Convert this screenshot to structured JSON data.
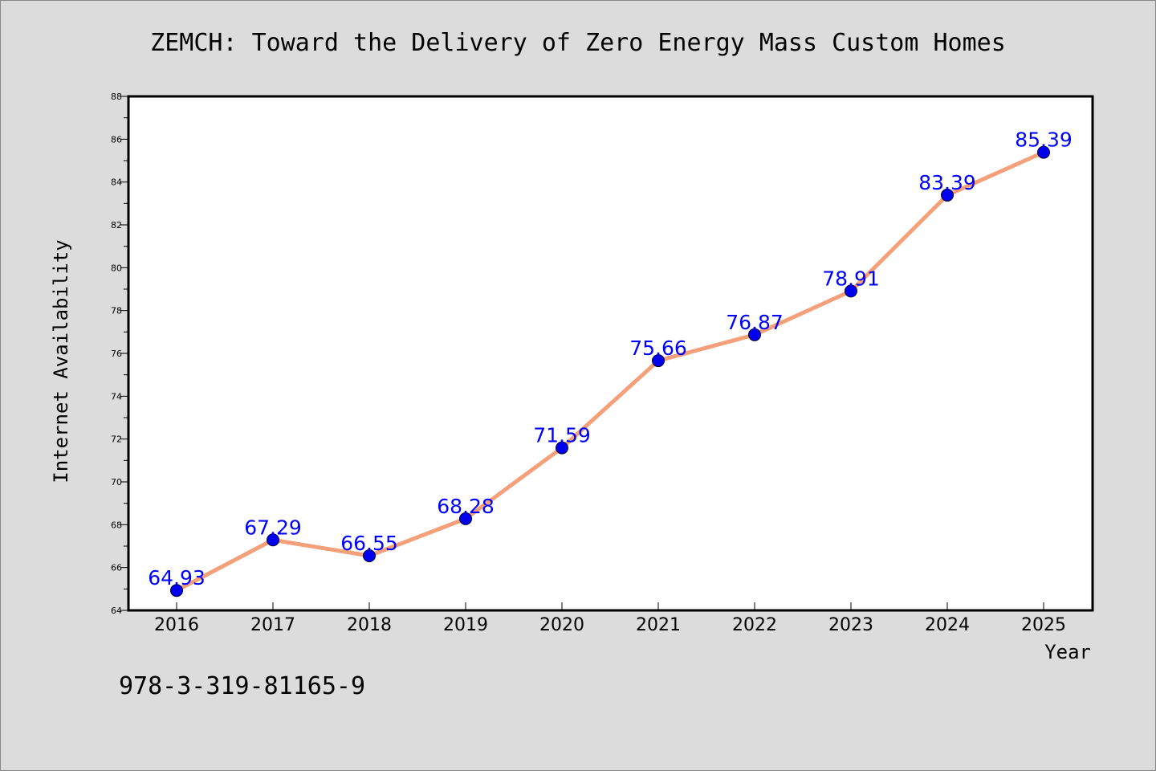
{
  "chart_data": {
    "type": "line",
    "title": "ZEMCH: Toward the Delivery of Zero Energy Mass Custom Homes",
    "xlabel": "Year",
    "ylabel": "Internet Availability",
    "x": [
      "2016",
      "2017",
      "2018",
      "2019",
      "2020",
      "2021",
      "2022",
      "2023",
      "2024",
      "2025"
    ],
    "values": [
      64.93,
      67.29,
      66.55,
      68.28,
      71.59,
      75.66,
      76.87,
      78.91,
      83.39,
      85.39
    ],
    "data_labels": [
      "64.93",
      "67.29",
      "66.55",
      "68.28",
      "71.59",
      "75.66",
      "76.87",
      "78.91",
      "83.39",
      "85.39"
    ],
    "ylim": [
      64,
      88
    ],
    "yticks": [
      "64",
      "66",
      "68",
      "70",
      "72",
      "74",
      "76",
      "78",
      "80",
      "82",
      "84",
      "86",
      "88"
    ],
    "grid": false,
    "legend": "none",
    "line_color": "#f4a07a",
    "marker_color": "#0000ee",
    "label_color": "#0000ff"
  },
  "footer": {
    "isbn": "978-3-319-81165-9"
  }
}
